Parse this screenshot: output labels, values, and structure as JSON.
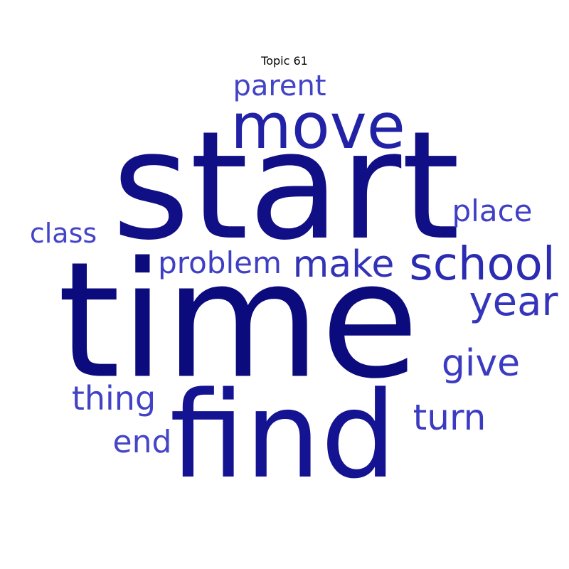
{
  "title": "Topic 61",
  "words": [
    {
      "text": "start",
      "color": "#110f86"
    },
    {
      "text": "time",
      "color": "#0c0b7d"
    },
    {
      "text": "find",
      "color": "#141392"
    },
    {
      "text": "move",
      "color": "#2222a6"
    },
    {
      "text": "school",
      "color": "#2b2cb2"
    },
    {
      "text": "make",
      "color": "#3333b8"
    },
    {
      "text": "year",
      "color": "#3535bb"
    },
    {
      "text": "give",
      "color": "#3b3bc2"
    },
    {
      "text": "turn",
      "color": "#3b3bc2"
    },
    {
      "text": "problem",
      "color": "#3f3fc4"
    },
    {
      "text": "place",
      "color": "#4040c6"
    },
    {
      "text": "parent",
      "color": "#4343c6"
    },
    {
      "text": "class",
      "color": "#4444c8"
    },
    {
      "text": "thing",
      "color": "#4242c6"
    },
    {
      "text": "end",
      "color": "#4545c8"
    }
  ]
}
